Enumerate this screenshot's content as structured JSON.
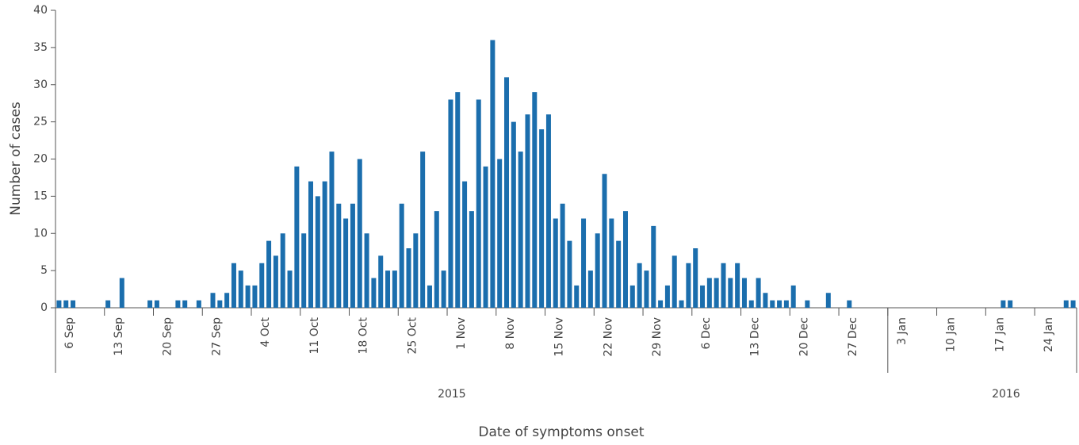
{
  "chart_data": {
    "type": "bar",
    "y_label": "Number of cases",
    "x_label": "Date of symptoms onset",
    "year_labels": [
      "2015",
      "2016"
    ],
    "color": "#1b6ead",
    "ylim": [
      0,
      40
    ],
    "yticks": [
      0,
      5,
      10,
      15,
      20,
      25,
      30,
      35,
      40
    ],
    "categories": [
      null,
      null,
      "6 Sep",
      null,
      null,
      null,
      null,
      null,
      null,
      "13 Sep",
      null,
      null,
      null,
      null,
      null,
      null,
      "20 Sep",
      null,
      null,
      null,
      null,
      null,
      null,
      "27 Sep",
      null,
      null,
      null,
      null,
      null,
      null,
      "4 Oct",
      null,
      null,
      null,
      null,
      null,
      null,
      "11 Oct",
      null,
      null,
      null,
      null,
      null,
      null,
      "18 Oct",
      null,
      null,
      null,
      null,
      null,
      null,
      "25 Oct",
      null,
      null,
      null,
      null,
      null,
      null,
      "1 Nov",
      null,
      null,
      null,
      null,
      null,
      null,
      "8 Nov",
      null,
      null,
      null,
      null,
      null,
      null,
      "15 Nov",
      null,
      null,
      null,
      null,
      null,
      null,
      "22 Nov",
      null,
      null,
      null,
      null,
      null,
      null,
      "29 Nov",
      null,
      null,
      null,
      null,
      null,
      null,
      "6 Dec",
      null,
      null,
      null,
      null,
      null,
      null,
      "13 Dec",
      null,
      null,
      null,
      null,
      null,
      null,
      "20 Dec",
      null,
      null,
      null,
      null,
      null,
      null,
      "27 Dec",
      null,
      null,
      null,
      null,
      null,
      null,
      "3 Jan",
      null,
      null,
      null,
      null,
      null,
      null,
      "10 Jan",
      null,
      null,
      null,
      null,
      null,
      null,
      "17 Jan",
      null,
      null,
      null,
      null,
      null,
      null,
      "24 Jan",
      null,
      null,
      null
    ],
    "values": [
      1,
      1,
      1,
      0,
      0,
      0,
      0,
      1,
      0,
      4,
      0,
      0,
      0,
      1,
      1,
      0,
      0,
      1,
      1,
      0,
      1,
      0,
      2,
      1,
      2,
      6,
      5,
      3,
      3,
      6,
      9,
      7,
      10,
      5,
      19,
      10,
      17,
      15,
      17,
      21,
      14,
      12,
      14,
      20,
      10,
      4,
      7,
      5,
      5,
      14,
      8,
      10,
      21,
      3,
      13,
      5,
      28,
      29,
      17,
      13,
      28,
      19,
      36,
      20,
      31,
      25,
      21,
      26,
      29,
      24,
      26,
      12,
      14,
      9,
      3,
      12,
      5,
      10,
      18,
      12,
      9,
      13,
      3,
      6,
      5,
      11,
      1,
      3,
      7,
      1,
      6,
      8,
      3,
      4,
      4,
      6,
      4,
      6,
      4,
      1,
      4,
      2,
      1,
      1,
      1,
      3,
      0,
      1,
      0,
      0,
      2,
      0,
      0,
      1,
      0,
      0,
      0,
      0,
      0,
      0,
      0,
      0,
      0,
      0,
      0,
      0,
      0,
      0,
      0,
      0,
      0,
      0,
      0,
      0,
      0,
      1,
      1,
      0,
      0,
      0,
      0,
      0,
      0,
      0,
      1,
      1
    ]
  }
}
